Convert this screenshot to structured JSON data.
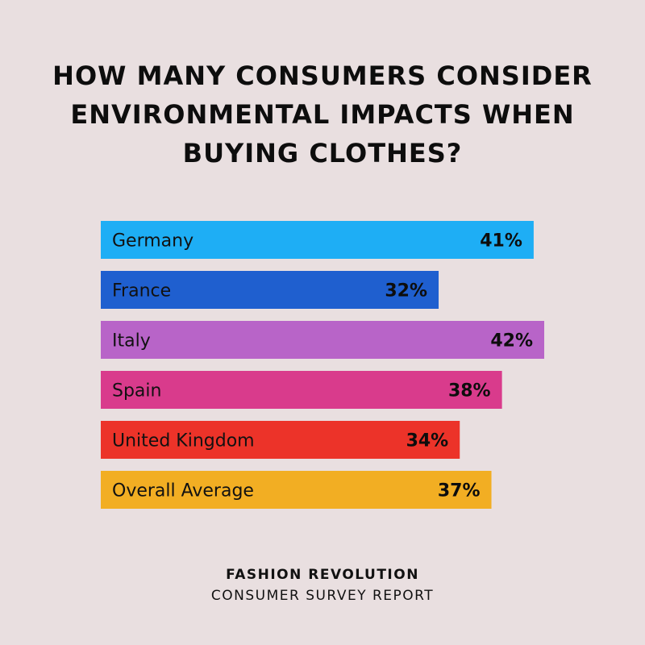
{
  "chart_data": {
    "type": "bar",
    "orientation": "horizontal",
    "title_lines": [
      "HOW MANY CONSUMERS CONSIDER",
      "ENVIRONMENTAL IMPACTS WHEN",
      "BUYING CLOTHES?"
    ],
    "categories": [
      "Germany",
      "France",
      "Italy",
      "Spain",
      "United Kingdom",
      "Overall Average"
    ],
    "values": [
      41,
      32,
      42,
      38,
      34,
      37
    ],
    "value_labels": [
      "41%",
      "32%",
      "42%",
      "38%",
      "34%",
      "37%"
    ],
    "colors": [
      "#1eaef5",
      "#1f5fcf",
      "#b864c8",
      "#d93b8c",
      "#ec3329",
      "#f2ae23"
    ],
    "unit": "%",
    "xlim": [
      0,
      42
    ],
    "grid": false,
    "legend": "none"
  },
  "footer": {
    "org": "FASHION REVOLUTION",
    "report": "CONSUMER SURVEY REPORT"
  }
}
